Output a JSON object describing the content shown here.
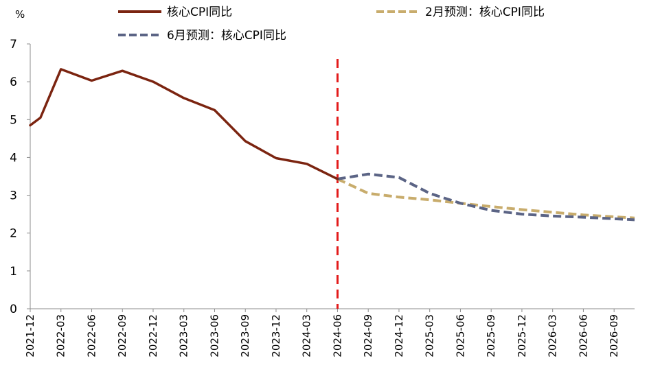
{
  "chart_data": {
    "type": "line",
    "title": "",
    "xlabel": "",
    "ylabel": "%",
    "ylim": [
      0,
      7
    ],
    "yticks": [
      0,
      1,
      2,
      3,
      4,
      5,
      6,
      7
    ],
    "grid": false,
    "legend_position": "top",
    "x_tick_labels": [
      "2021-12",
      "2022-03",
      "2022-06",
      "2022-09",
      "2022-12",
      "2023-03",
      "2023-06",
      "2023-09",
      "2023-12",
      "2024-03",
      "2024-06",
      "2024-09",
      "2024-12",
      "2025-03",
      "2025-06",
      "2025-09",
      "2025-12",
      "2026-03",
      "2026-06",
      "2026-09"
    ],
    "x_range": [
      "2021-12",
      "2026-11"
    ],
    "reference_line": {
      "x": "2024-06",
      "color": "#E31B1B",
      "style": "dashed"
    },
    "series": [
      {
        "name": "核心CPI同比",
        "color": "#7B2410",
        "style": "solid",
        "points": [
          {
            "x": "2021-12",
            "y": 4.85
          },
          {
            "x": "2022-01",
            "y": 5.05
          },
          {
            "x": "2022-03",
            "y": 6.33
          },
          {
            "x": "2022-06",
            "y": 6.03
          },
          {
            "x": "2022-09",
            "y": 6.29
          },
          {
            "x": "2022-12",
            "y": 6.0
          },
          {
            "x": "2023-03",
            "y": 5.57
          },
          {
            "x": "2023-06",
            "y": 5.25
          },
          {
            "x": "2023-09",
            "y": 4.43
          },
          {
            "x": "2023-12",
            "y": 3.98
          },
          {
            "x": "2024-03",
            "y": 3.83
          },
          {
            "x": "2024-06",
            "y": 3.43
          }
        ]
      },
      {
        "name": "2月预测：核心CPI同比",
        "color": "#C8AC6C",
        "style": "dashed",
        "points": [
          {
            "x": "2024-06",
            "y": 3.43
          },
          {
            "x": "2024-09",
            "y": 3.05
          },
          {
            "x": "2024-12",
            "y": 2.95
          },
          {
            "x": "2025-03",
            "y": 2.88
          },
          {
            "x": "2025-06",
            "y": 2.79
          },
          {
            "x": "2025-09",
            "y": 2.7
          },
          {
            "x": "2025-12",
            "y": 2.62
          },
          {
            "x": "2026-03",
            "y": 2.55
          },
          {
            "x": "2026-06",
            "y": 2.48
          },
          {
            "x": "2026-09",
            "y": 2.43
          },
          {
            "x": "2026-11",
            "y": 2.4
          }
        ]
      },
      {
        "name": "6月预测：核心CPI同比",
        "color": "#5B6485",
        "style": "dashed",
        "points": [
          {
            "x": "2024-06",
            "y": 3.43
          },
          {
            "x": "2024-09",
            "y": 3.56
          },
          {
            "x": "2024-12",
            "y": 3.47
          },
          {
            "x": "2025-03",
            "y": 3.05
          },
          {
            "x": "2025-06",
            "y": 2.79
          },
          {
            "x": "2025-09",
            "y": 2.6
          },
          {
            "x": "2025-12",
            "y": 2.5
          },
          {
            "x": "2026-03",
            "y": 2.45
          },
          {
            "x": "2026-06",
            "y": 2.42
          },
          {
            "x": "2026-09",
            "y": 2.38
          },
          {
            "x": "2026-11",
            "y": 2.35
          }
        ]
      }
    ]
  }
}
